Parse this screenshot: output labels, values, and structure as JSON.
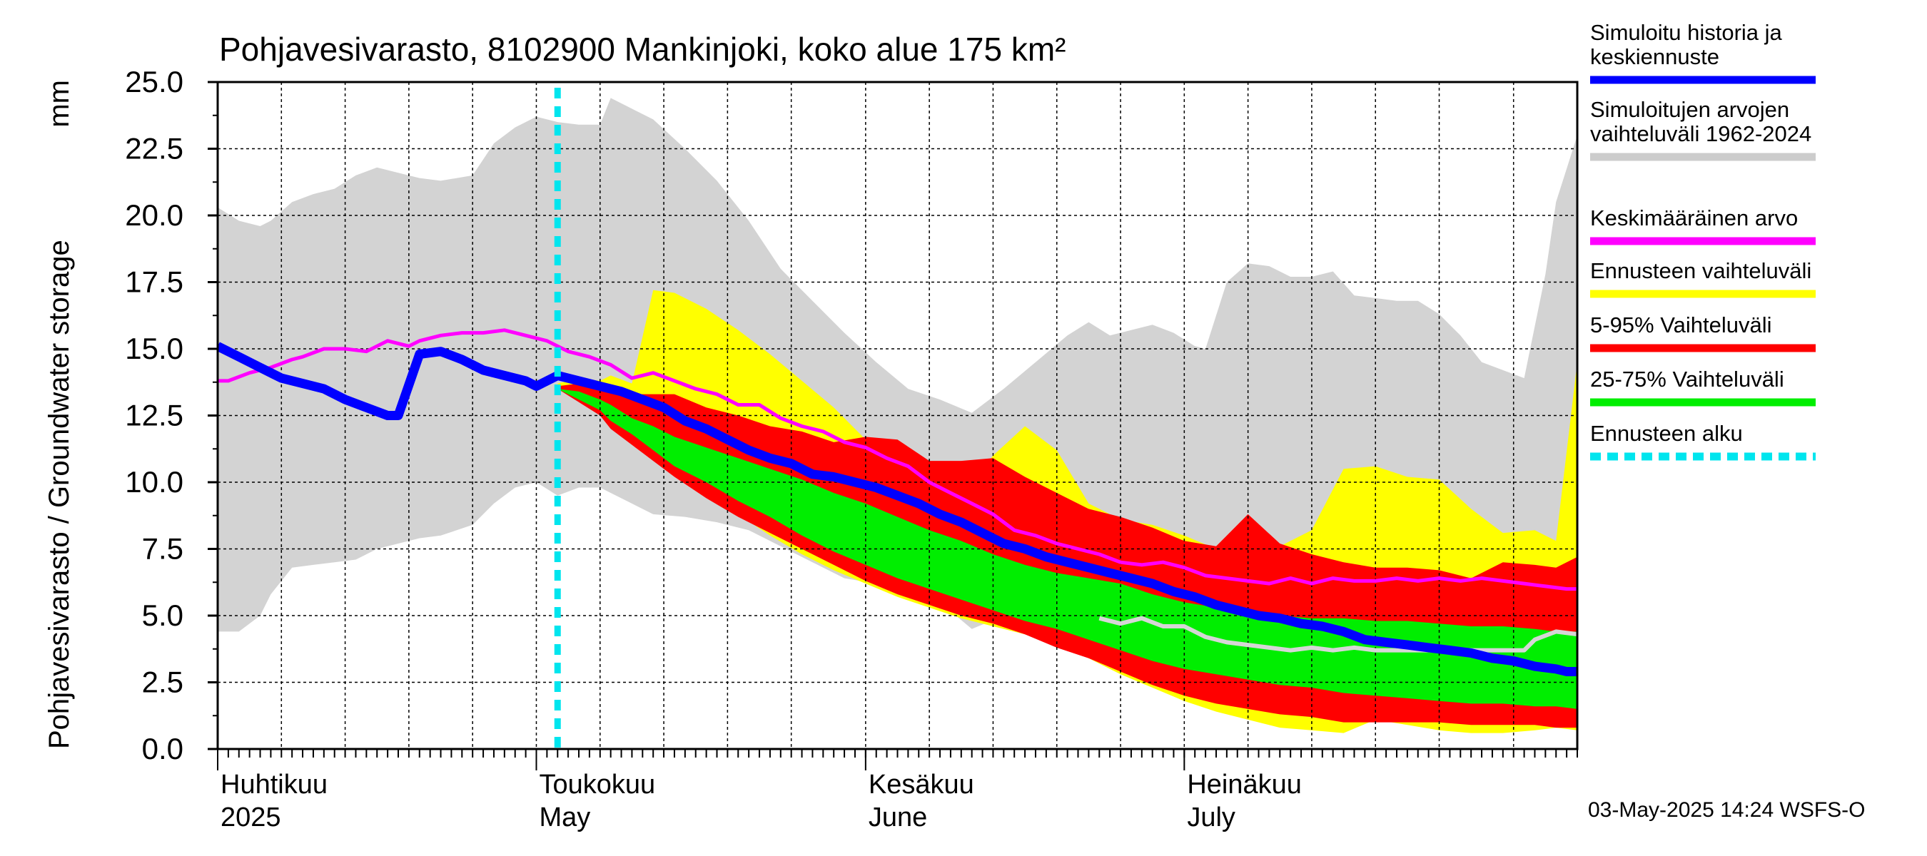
{
  "chart_data": {
    "type": "area",
    "title": "Pohjavesivarasto, 8102900 Mankinjoki, koko alue 175 km²",
    "ylabel": "Pohjavesivarasto / Groundwater storage",
    "yunit": "mm",
    "ylim": [
      0,
      25
    ],
    "yticks": [
      "0.0",
      "2.5",
      "5.0",
      "7.5",
      "10.0",
      "12.5",
      "15.0",
      "17.5",
      "20.0",
      "22.5",
      "25.0"
    ],
    "xlim_days": [
      0,
      128
    ],
    "x_unit": "days since 1 April 2025",
    "month_labels": [
      {
        "day": 0,
        "fi": "Huhtikuu",
        "en": "2025"
      },
      {
        "day": 30,
        "fi": "Toukokuu",
        "en": "May"
      },
      {
        "day": 61,
        "fi": "Kesäkuu",
        "en": "June"
      },
      {
        "day": 91,
        "fi": "Heinäkuu",
        "en": "July"
      }
    ],
    "forecast_start_day": 32,
    "series": [
      {
        "name": "Simuloitujen arvojen vaihteluväli 1962-2024",
        "kind": "band",
        "color": "#d3d3d3",
        "x": [
          0,
          2,
          4,
          5,
          7,
          9,
          11,
          13,
          15,
          17,
          19,
          21,
          24,
          26,
          28,
          30,
          32,
          34,
          36,
          37,
          39,
          41,
          44,
          47,
          50,
          53,
          56,
          59,
          62,
          65,
          68,
          71,
          74,
          77,
          80,
          82,
          84,
          86,
          88,
          90,
          92,
          93,
          95,
          97,
          99,
          101,
          103,
          105,
          107,
          109,
          111,
          113,
          115,
          117,
          119,
          121,
          123,
          125,
          126,
          128
        ],
        "upper": [
          20.3,
          19.8,
          19.6,
          19.8,
          20.5,
          20.8,
          21.0,
          21.5,
          21.8,
          21.6,
          21.4,
          21.3,
          21.5,
          22.7,
          23.3,
          23.7,
          23.5,
          23.4,
          23.4,
          24.4,
          24.0,
          23.6,
          22.5,
          21.3,
          19.8,
          18.0,
          16.8,
          15.6,
          14.5,
          13.5,
          13.1,
          12.6,
          13.5,
          14.5,
          15.5,
          16.0,
          15.5,
          15.7,
          15.9,
          15.6,
          15.1,
          15.0,
          17.5,
          18.2,
          18.1,
          17.7,
          17.7,
          17.9,
          17.0,
          16.9,
          16.8,
          16.8,
          16.3,
          15.5,
          14.5,
          14.2,
          13.9,
          17.8,
          20.5,
          23.0
        ],
        "lower": [
          4.4,
          4.4,
          5.0,
          5.8,
          6.8,
          6.9,
          7.0,
          7.1,
          7.5,
          7.7,
          7.9,
          8.0,
          8.4,
          9.2,
          9.8,
          10.0,
          9.5,
          9.8,
          9.8,
          9.6,
          9.2,
          8.8,
          8.7,
          8.5,
          8.2,
          7.6,
          7.0,
          6.4,
          6.2,
          5.9,
          5.5,
          4.5,
          5.0,
          4.7,
          4.6,
          4.8,
          4.3,
          4.1,
          3.9,
          3.7,
          3.5,
          3.5,
          3.6,
          3.7,
          3.6,
          3.6,
          3.6,
          3.6,
          3.5,
          3.6,
          3.6,
          3.7,
          3.7,
          3.7,
          3.8,
          4.0,
          4.0,
          4.2,
          4.3,
          4.5
        ]
      },
      {
        "name": "Ennusteen vaihteluväli",
        "kind": "band",
        "color": "#ffff00",
        "x": [
          32,
          34,
          36,
          37,
          39,
          41,
          43,
          46,
          49,
          52,
          55,
          58,
          61,
          64,
          67,
          70,
          73,
          76,
          79,
          82,
          85,
          88,
          91,
          94,
          97,
          100,
          103,
          106,
          109,
          112,
          115,
          118,
          121,
          124,
          126,
          128
        ],
        "upper": [
          13.7,
          13.9,
          13.8,
          14.0,
          13.7,
          17.2,
          17.1,
          16.5,
          15.7,
          14.8,
          13.8,
          12.8,
          11.6,
          10.7,
          9.9,
          9.5,
          11.0,
          12.1,
          11.2,
          9.2,
          8.6,
          8.4,
          8.0,
          7.5,
          7.5,
          7.6,
          8.2,
          10.5,
          10.6,
          10.2,
          10.1,
          9.0,
          8.1,
          8.2,
          7.8,
          14.5
        ],
        "lower": [
          13.5,
          13.2,
          12.7,
          12.2,
          11.6,
          11.0,
          10.4,
          9.6,
          8.8,
          8.0,
          7.3,
          6.7,
          6.2,
          5.7,
          5.3,
          4.9,
          4.6,
          4.3,
          3.9,
          3.4,
          2.8,
          2.3,
          1.8,
          1.4,
          1.1,
          0.8,
          0.7,
          0.6,
          1.1,
          0.9,
          0.7,
          0.6,
          0.6,
          0.7,
          0.8,
          0.7
        ]
      },
      {
        "name": "5-95% Vaihteluväli",
        "kind": "band",
        "color": "#ff0000",
        "x": [
          32,
          34,
          36,
          37,
          39,
          41,
          43,
          46,
          49,
          52,
          55,
          58,
          61,
          64,
          67,
          70,
          73,
          76,
          79,
          82,
          85,
          88,
          91,
          94,
          97,
          100,
          103,
          106,
          109,
          112,
          115,
          118,
          121,
          124,
          126,
          128
        ],
        "upper": [
          13.6,
          13.7,
          13.5,
          13.5,
          13.3,
          13.3,
          13.3,
          12.8,
          12.5,
          12.1,
          11.9,
          11.5,
          11.7,
          11.6,
          10.8,
          10.8,
          10.9,
          10.2,
          9.6,
          9.0,
          8.7,
          8.3,
          7.8,
          7.6,
          8.8,
          7.7,
          7.3,
          7.0,
          6.8,
          6.8,
          6.7,
          6.4,
          7.0,
          6.9,
          6.8,
          7.2
        ],
        "lower": [
          13.5,
          13.0,
          12.5,
          12.0,
          11.4,
          10.8,
          10.2,
          9.4,
          8.7,
          8.1,
          7.5,
          6.9,
          6.3,
          5.8,
          5.4,
          5.0,
          4.7,
          4.3,
          3.8,
          3.4,
          2.9,
          2.4,
          2.0,
          1.7,
          1.5,
          1.3,
          1.2,
          1.0,
          1.0,
          1.0,
          1.0,
          0.9,
          0.9,
          0.9,
          0.8,
          0.8
        ]
      },
      {
        "name": "25-75% Vaihteluväli",
        "kind": "band",
        "color": "#00ee00",
        "x": [
          32,
          34,
          36,
          37,
          39,
          41,
          43,
          46,
          49,
          52,
          55,
          58,
          61,
          64,
          67,
          70,
          73,
          76,
          79,
          82,
          85,
          88,
          91,
          94,
          97,
          100,
          103,
          106,
          109,
          112,
          115,
          118,
          121,
          124,
          126,
          128
        ],
        "upper": [
          13.5,
          13.4,
          13.1,
          12.9,
          12.4,
          12.1,
          11.7,
          11.3,
          10.9,
          10.5,
          10.1,
          9.6,
          9.2,
          8.7,
          8.2,
          7.8,
          7.3,
          6.9,
          6.6,
          6.4,
          6.2,
          5.8,
          5.5,
          5.3,
          5.1,
          5.0,
          4.9,
          4.9,
          4.8,
          4.8,
          4.7,
          4.6,
          4.6,
          4.5,
          4.4,
          4.4
        ],
        "lower": [
          13.5,
          13.1,
          12.7,
          12.3,
          11.8,
          11.2,
          10.6,
          10.0,
          9.3,
          8.7,
          8.0,
          7.4,
          6.9,
          6.4,
          6.0,
          5.6,
          5.2,
          4.8,
          4.5,
          4.1,
          3.7,
          3.3,
          3.0,
          2.8,
          2.6,
          2.4,
          2.3,
          2.1,
          2.0,
          1.9,
          1.8,
          1.7,
          1.7,
          1.6,
          1.6,
          1.5
        ]
      },
      {
        "name": "Keskimääräinen arvo",
        "kind": "line",
        "color": "#ff00ff",
        "width": 5,
        "x": [
          0,
          1,
          3,
          5,
          7,
          8,
          10,
          12,
          14,
          16,
          18,
          19,
          21,
          23,
          25,
          27,
          29,
          31,
          33,
          35,
          37,
          39,
          41,
          43,
          45,
          47,
          49,
          51,
          53,
          55,
          57,
          59,
          61,
          63,
          65,
          67,
          69,
          71,
          73,
          75,
          77,
          79,
          81,
          83,
          85,
          87,
          89,
          91,
          93,
          95,
          97,
          99,
          101,
          103,
          105,
          107,
          109,
          111,
          113,
          115,
          117,
          119,
          121,
          123,
          125,
          127,
          128
        ],
        "y": [
          13.8,
          13.8,
          14.1,
          14.3,
          14.6,
          14.7,
          15.0,
          15.0,
          14.9,
          15.3,
          15.1,
          15.3,
          15.5,
          15.6,
          15.6,
          15.7,
          15.5,
          15.3,
          14.9,
          14.7,
          14.4,
          13.9,
          14.1,
          13.8,
          13.5,
          13.3,
          12.9,
          12.9,
          12.4,
          12.1,
          11.9,
          11.5,
          11.3,
          10.9,
          10.6,
          10.0,
          9.6,
          9.2,
          8.8,
          8.2,
          8.0,
          7.7,
          7.5,
          7.3,
          7.0,
          6.9,
          7.0,
          6.8,
          6.5,
          6.4,
          6.3,
          6.2,
          6.4,
          6.2,
          6.4,
          6.3,
          6.3,
          6.4,
          6.3,
          6.4,
          6.3,
          6.4,
          6.3,
          6.2,
          6.1,
          6.0,
          6.0
        ]
      },
      {
        "name": "Simuloitu historia (light grey)",
        "kind": "line",
        "color": "#d6d6d6",
        "width": 6,
        "x": [
          83,
          85,
          87,
          89,
          91,
          93,
          95,
          97,
          99,
          101,
          103,
          105,
          107,
          109,
          111,
          113,
          115,
          117,
          119,
          121,
          123,
          124,
          126,
          128
        ],
        "y": [
          4.9,
          4.7,
          4.9,
          4.6,
          4.6,
          4.2,
          4.0,
          3.9,
          3.8,
          3.7,
          3.8,
          3.7,
          3.8,
          3.7,
          3.7,
          3.7,
          3.7,
          3.7,
          3.7,
          3.7,
          3.7,
          4.1,
          4.4,
          4.3
        ]
      },
      {
        "name": "Simuloitu historia ja keskiennuste",
        "kind": "line",
        "color": "#0000ff",
        "width": 13,
        "x": [
          0,
          2,
          4,
          6,
          8,
          10,
          12,
          14,
          16,
          17,
          19,
          21,
          23,
          25,
          27,
          29,
          30,
          32,
          34,
          36,
          38,
          40,
          42,
          44,
          46,
          48,
          50,
          52,
          54,
          56,
          58,
          60,
          62,
          64,
          66,
          68,
          70,
          72,
          74,
          76,
          78,
          80,
          82,
          84,
          86,
          88,
          90,
          92,
          94,
          96,
          98,
          100,
          102,
          104,
          106,
          108,
          110,
          112,
          114,
          116,
          118,
          120,
          122,
          124,
          126,
          127,
          128
        ],
        "y": [
          15.1,
          14.7,
          14.3,
          13.9,
          13.7,
          13.5,
          13.1,
          12.8,
          12.5,
          12.5,
          14.8,
          14.9,
          14.6,
          14.2,
          14.0,
          13.8,
          13.6,
          14.0,
          13.8,
          13.6,
          13.4,
          13.1,
          12.8,
          12.3,
          12.0,
          11.6,
          11.2,
          10.9,
          10.7,
          10.3,
          10.2,
          10.0,
          9.8,
          9.5,
          9.2,
          8.8,
          8.5,
          8.1,
          7.7,
          7.5,
          7.2,
          7.0,
          6.8,
          6.6,
          6.4,
          6.2,
          5.9,
          5.7,
          5.4,
          5.2,
          5.0,
          4.9,
          4.7,
          4.6,
          4.4,
          4.1,
          4.0,
          3.9,
          3.8,
          3.7,
          3.6,
          3.4,
          3.3,
          3.1,
          3.0,
          2.9,
          2.9
        ]
      }
    ],
    "legend": [
      {
        "lines": [
          "Simuloitu historia ja",
          "keskiennuste"
        ],
        "color": "#0000ff",
        "style": "solid"
      },
      {
        "lines": [
          "Simuloitujen arvojen",
          "vaihteluväli 1962-2024"
        ],
        "color": "#cccccc",
        "style": "solid"
      },
      {
        "lines": [
          "Keskimääräinen arvo"
        ],
        "color": "#ff00ff",
        "style": "solid"
      },
      {
        "lines": [
          "Ennusteen vaihteluväli"
        ],
        "color": "#ffff00",
        "style": "solid"
      },
      {
        "lines": [
          "5-95% Vaihteluväli"
        ],
        "color": "#ff0000",
        "style": "solid"
      },
      {
        "lines": [
          "25-75% Vaihteluväli"
        ],
        "color": "#00ee00",
        "style": "solid"
      },
      {
        "lines": [
          "Ennusteen alku"
        ],
        "color": "#00e5ee",
        "style": "dotted"
      }
    ],
    "footer": "03-May-2025 14:24 WSFS-O"
  }
}
